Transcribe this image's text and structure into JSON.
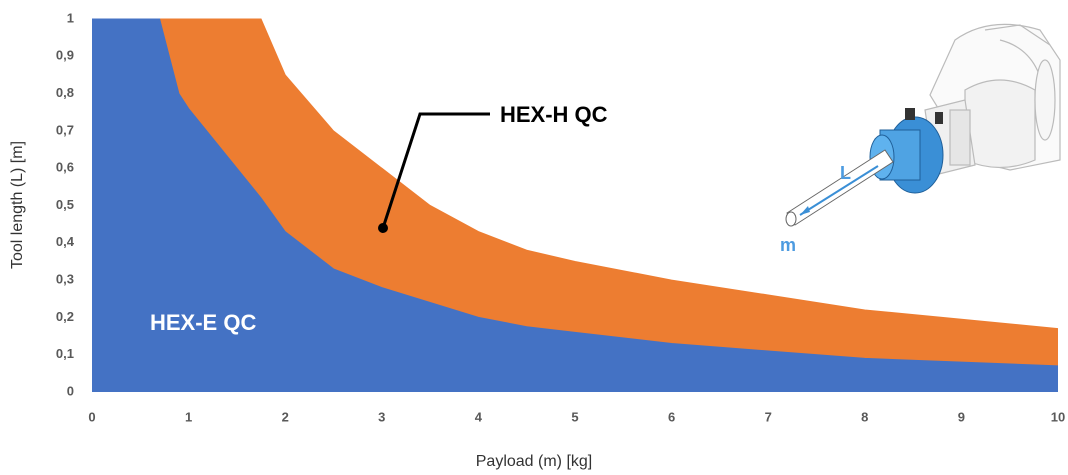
{
  "chart_data": {
    "type": "area",
    "x_label": "Payload (m) [kg]",
    "y_label": "Tool length (L) [m]",
    "x": [
      0,
      0.7,
      0.9,
      1,
      1.5,
      1.75,
      2,
      2.5,
      3,
      3.5,
      4,
      4.5,
      5,
      6,
      7,
      8,
      9,
      10
    ],
    "series": [
      {
        "name": "HEX-H QC",
        "color": "#ed7d31",
        "values": [
          1,
          1,
          1,
          1,
          1,
          1,
          0.85,
          0.7,
          0.6,
          0.5,
          0.43,
          0.38,
          0.35,
          0.3,
          0.26,
          0.22,
          0.195,
          0.17
        ]
      },
      {
        "name": "HEX-E QC",
        "color": "#4472c4",
        "values": [
          1,
          1,
          0.8,
          0.76,
          0.6,
          0.52,
          0.43,
          0.33,
          0.28,
          0.24,
          0.2,
          0.175,
          0.16,
          0.13,
          0.11,
          0.09,
          0.08,
          0.07
        ]
      }
    ],
    "xlim": [
      0,
      10
    ],
    "ylim": [
      0,
      1
    ],
    "xticks": [
      0,
      1,
      2,
      3,
      4,
      5,
      6,
      7,
      8,
      9,
      10
    ],
    "yticks": [
      0,
      {
        "value": 0.1,
        "label": "0,1"
      },
      {
        "value": 0.2,
        "label": "0,2"
      },
      {
        "value": 0.3,
        "label": "0,3"
      },
      {
        "value": 0.4,
        "label": "0,4"
      },
      {
        "value": 0.5,
        "label": "0,5"
      },
      {
        "value": 0.6,
        "label": "0,6"
      },
      {
        "value": 0.7,
        "label": "0,7"
      },
      {
        "value": 0.8,
        "label": "0,8"
      },
      {
        "value": 0.9,
        "label": "0,9"
      },
      1
    ],
    "grid": false,
    "annotations": [
      "L",
      "m"
    ]
  }
}
